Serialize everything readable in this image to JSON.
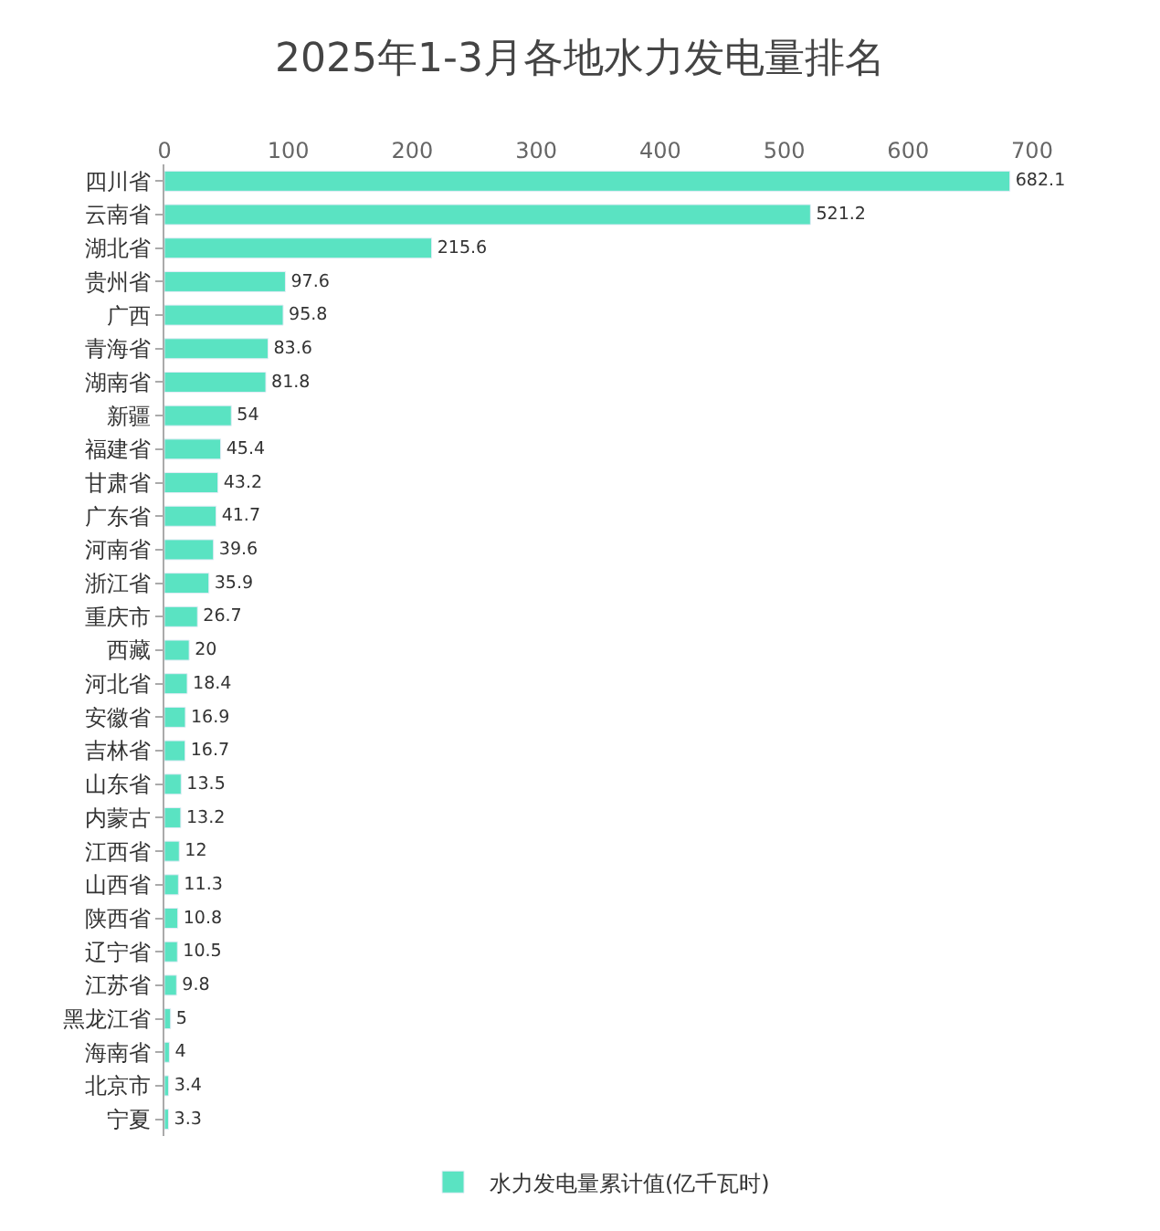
{
  "chart_data": {
    "type": "bar",
    "orientation": "horizontal",
    "title": "2025年1-3月各地水力发电量排名",
    "categories": [
      "四川省",
      "云南省",
      "湖北省",
      "贵州省",
      "广西",
      "青海省",
      "湖南省",
      "新疆",
      "福建省",
      "甘肃省",
      "广东省",
      "河南省",
      "浙江省",
      "重庆市",
      "西藏",
      "河北省",
      "安徽省",
      "吉林省",
      "山东省",
      "内蒙古",
      "江西省",
      "山西省",
      "陕西省",
      "辽宁省",
      "江苏省",
      "黑龙江省",
      "海南省",
      "北京市",
      "宁夏"
    ],
    "series": [
      {
        "name": "水力发电量累计值(亿千瓦时)",
        "color": "#5ae3c2",
        "values": [
          682.1,
          521.2,
          215.6,
          97.6,
          95.8,
          83.6,
          81.8,
          54,
          45.4,
          43.2,
          41.7,
          39.6,
          35.9,
          26.7,
          20,
          18.4,
          16.9,
          16.7,
          13.5,
          13.2,
          12,
          11.3,
          10.8,
          10.5,
          9.8,
          5,
          4,
          3.4,
          3.3
        ]
      }
    ],
    "xlim": [
      0,
      700
    ],
    "xticks": [
      0,
      100,
      200,
      300,
      400,
      500,
      600,
      700
    ],
    "data_labels": true,
    "legend": "bottom"
  }
}
